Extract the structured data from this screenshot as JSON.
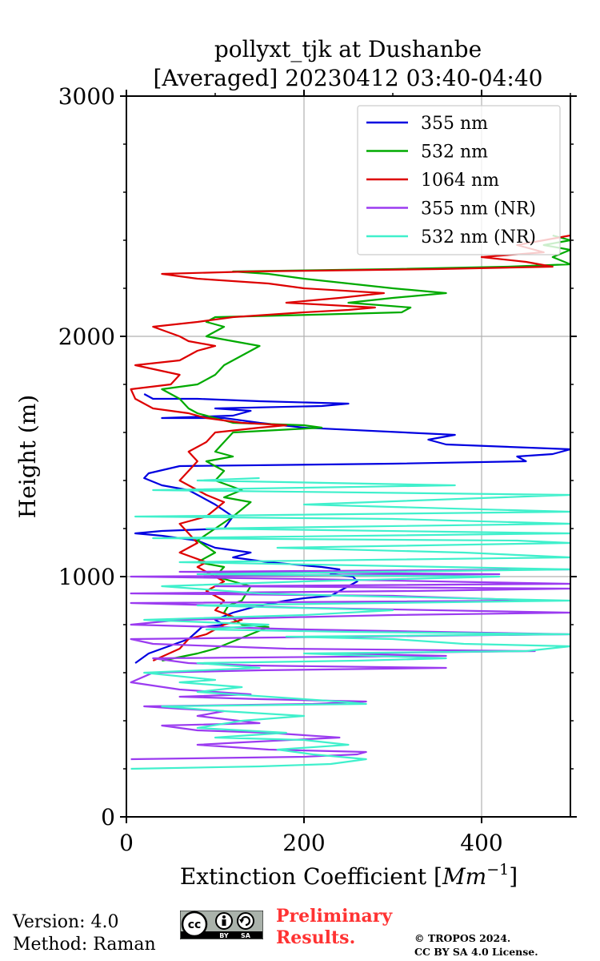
{
  "chart_data": {
    "type": "line",
    "title": "pollyxt_tjk at Dushanbe",
    "subtitle": "[Averaged] 20230412 03:40-04:40",
    "xlabel": "Extinction Coefficient [",
    "xlabel_unit": "Mm",
    "xlabel_exp": "−1",
    "xlabel_end": "]",
    "ylabel": "Height (m)",
    "xlim": [
      0,
      500
    ],
    "ylim": [
      0,
      3000
    ],
    "xticks": [
      0,
      200,
      400
    ],
    "xtick_labels": [
      "0",
      "200",
      "400"
    ],
    "yticks": [
      0,
      1000,
      2000,
      3000
    ],
    "ytick_labels": [
      "0",
      "1000",
      "2000",
      "3000"
    ],
    "y_minor_step": 200,
    "x_minor_step": 100,
    "grid": true,
    "legend_position": "top-right",
    "series": [
      {
        "name": "355 nm",
        "color": "#0000e0",
        "points": [
          [
            10,
            640
          ],
          [
            25,
            680
          ],
          [
            55,
            720
          ],
          [
            70,
            740
          ],
          [
            85,
            790
          ],
          [
            110,
            800
          ],
          [
            100,
            820
          ],
          [
            120,
            850
          ],
          [
            150,
            880
          ],
          [
            180,
            900
          ],
          [
            200,
            910
          ],
          [
            230,
            920
          ],
          [
            260,
            980
          ],
          [
            255,
            1000
          ],
          [
            230,
            1010
          ],
          [
            240,
            1030
          ],
          [
            220,
            1040
          ],
          [
            160,
            1060
          ],
          [
            120,
            1080
          ],
          [
            140,
            1100
          ],
          [
            100,
            1120
          ],
          [
            80,
            1150
          ],
          [
            40,
            1170
          ],
          [
            10,
            1180
          ],
          [
            40,
            1190
          ],
          [
            110,
            1200
          ],
          [
            120,
            1250
          ],
          [
            100,
            1300
          ],
          [
            70,
            1360
          ],
          [
            40,
            1380
          ],
          [
            20,
            1410
          ],
          [
            25,
            1430
          ],
          [
            60,
            1460
          ],
          [
            300,
            1470
          ],
          [
            450,
            1480
          ],
          [
            440,
            1500
          ],
          [
            480,
            1510
          ],
          [
            500,
            1530
          ],
          [
            360,
            1550
          ],
          [
            340,
            1570
          ],
          [
            370,
            1590
          ],
          [
            200,
            1620
          ],
          [
            150,
            1640
          ],
          [
            110,
            1660
          ],
          [
            40,
            1660
          ],
          [
            120,
            1670
          ],
          [
            140,
            1690
          ],
          [
            100,
            1700
          ],
          [
            220,
            1710
          ],
          [
            250,
            1720
          ],
          [
            150,
            1730
          ],
          [
            80,
            1740
          ],
          [
            30,
            1740
          ],
          [
            20,
            1760
          ]
        ]
      },
      {
        "name": "532 nm",
        "color": "#00aa00",
        "points": [
          [
            40,
            650
          ],
          [
            80,
            680
          ],
          [
            100,
            700
          ],
          [
            120,
            730
          ],
          [
            140,
            760
          ],
          [
            160,
            790
          ],
          [
            130,
            800
          ],
          [
            110,
            850
          ],
          [
            115,
            880
          ],
          [
            130,
            900
          ],
          [
            140,
            960
          ],
          [
            120,
            980
          ],
          [
            100,
            1000
          ],
          [
            110,
            1040
          ],
          [
            80,
            1060
          ],
          [
            100,
            1100
          ],
          [
            80,
            1150
          ],
          [
            100,
            1200
          ],
          [
            120,
            1250
          ],
          [
            130,
            1280
          ],
          [
            140,
            1310
          ],
          [
            110,
            1330
          ],
          [
            130,
            1360
          ],
          [
            100,
            1400
          ],
          [
            110,
            1440
          ],
          [
            90,
            1480
          ],
          [
            120,
            1500
          ],
          [
            100,
            1520
          ],
          [
            110,
            1560
          ],
          [
            120,
            1600
          ],
          [
            220,
            1620
          ],
          [
            200,
            1630
          ],
          [
            120,
            1640
          ],
          [
            100,
            1660
          ],
          [
            80,
            1680
          ],
          [
            70,
            1700
          ],
          [
            60,
            1740
          ],
          [
            40,
            1780
          ],
          [
            80,
            1800
          ],
          [
            100,
            1840
          ],
          [
            110,
            1880
          ],
          [
            130,
            1920
          ],
          [
            150,
            1960
          ],
          [
            120,
            1980
          ],
          [
            90,
            2000
          ],
          [
            110,
            2040
          ],
          [
            90,
            2060
          ],
          [
            100,
            2080
          ],
          [
            210,
            2090
          ],
          [
            310,
            2100
          ],
          [
            320,
            2120
          ],
          [
            250,
            2140
          ],
          [
            300,
            2160
          ],
          [
            360,
            2180
          ],
          [
            300,
            2200
          ],
          [
            250,
            2220
          ],
          [
            200,
            2240
          ],
          [
            160,
            2260
          ],
          [
            120,
            2270
          ],
          [
            300,
            2280
          ],
          [
            430,
            2290
          ],
          [
            500,
            2300
          ],
          [
            480,
            2330
          ],
          [
            500,
            2360
          ],
          [
            470,
            2380
          ],
          [
            500,
            2400
          ],
          [
            480,
            2420
          ]
        ]
      },
      {
        "name": "1064 nm",
        "color": "#dd0000",
        "points": [
          [
            30,
            650
          ],
          [
            60,
            700
          ],
          [
            70,
            740
          ],
          [
            90,
            760
          ],
          [
            110,
            800
          ],
          [
            130,
            820
          ],
          [
            100,
            860
          ],
          [
            110,
            900
          ],
          [
            90,
            940
          ],
          [
            110,
            980
          ],
          [
            100,
            1000
          ],
          [
            80,
            1040
          ],
          [
            90,
            1060
          ],
          [
            60,
            1100
          ],
          [
            80,
            1140
          ],
          [
            70,
            1180
          ],
          [
            60,
            1220
          ],
          [
            90,
            1250
          ],
          [
            100,
            1280
          ],
          [
            110,
            1310
          ],
          [
            90,
            1340
          ],
          [
            80,
            1360
          ],
          [
            60,
            1400
          ],
          [
            70,
            1440
          ],
          [
            80,
            1480
          ],
          [
            70,
            1520
          ],
          [
            90,
            1560
          ],
          [
            100,
            1600
          ],
          [
            150,
            1620
          ],
          [
            180,
            1630
          ],
          [
            130,
            1640
          ],
          [
            90,
            1660
          ],
          [
            70,
            1680
          ],
          [
            30,
            1700
          ],
          [
            10,
            1740
          ],
          [
            5,
            1780
          ],
          [
            50,
            1800
          ],
          [
            60,
            1840
          ],
          [
            10,
            1880
          ],
          [
            60,
            1900
          ],
          [
            80,
            1940
          ],
          [
            100,
            1960
          ],
          [
            70,
            1980
          ],
          [
            60,
            2000
          ],
          [
            30,
            2040
          ],
          [
            80,
            2060
          ],
          [
            120,
            2080
          ],
          [
            200,
            2100
          ],
          [
            250,
            2110
          ],
          [
            280,
            2120
          ],
          [
            180,
            2140
          ],
          [
            240,
            2160
          ],
          [
            290,
            2180
          ],
          [
            200,
            2200
          ],
          [
            160,
            2220
          ],
          [
            80,
            2240
          ],
          [
            40,
            2260
          ],
          [
            140,
            2270
          ],
          [
            350,
            2280
          ],
          [
            480,
            2290
          ],
          [
            450,
            2310
          ],
          [
            400,
            2330
          ],
          [
            470,
            2350
          ],
          [
            440,
            2380
          ],
          [
            470,
            2400
          ],
          [
            500,
            2420
          ]
        ]
      },
      {
        "name": "355 nm (NR)",
        "color": "#9b3bf0",
        "points": [
          [
            5,
            240
          ],
          [
            200,
            250
          ],
          [
            260,
            260
          ],
          [
            270,
            270
          ],
          [
            160,
            280
          ],
          [
            80,
            300
          ],
          [
            130,
            310
          ],
          [
            240,
            330
          ],
          [
            160,
            350
          ],
          [
            80,
            360
          ],
          [
            40,
            380
          ],
          [
            150,
            390
          ],
          [
            80,
            420
          ],
          [
            110,
            440
          ],
          [
            60,
            450
          ],
          [
            20,
            460
          ],
          [
            210,
            470
          ],
          [
            270,
            480
          ],
          [
            150,
            490
          ],
          [
            60,
            500
          ],
          [
            140,
            510
          ],
          [
            60,
            530
          ],
          [
            5,
            560
          ],
          [
            30,
            600
          ],
          [
            150,
            610
          ],
          [
            360,
            620
          ],
          [
            140,
            630
          ],
          [
            70,
            640
          ],
          [
            30,
            660
          ],
          [
            360,
            670
          ],
          [
            230,
            680
          ],
          [
            460,
            690
          ],
          [
            180,
            700
          ],
          [
            30,
            720
          ],
          [
            5,
            740
          ],
          [
            250,
            750
          ],
          [
            500,
            760
          ],
          [
            200,
            780
          ],
          [
            5,
            800
          ],
          [
            60,
            820
          ],
          [
            300,
            840
          ],
          [
            500,
            850
          ],
          [
            200,
            870
          ],
          [
            5,
            890
          ],
          [
            470,
            900
          ],
          [
            300,
            920
          ],
          [
            5,
            930
          ],
          [
            320,
            940
          ],
          [
            500,
            950
          ],
          [
            100,
            960
          ],
          [
            500,
            970
          ],
          [
            200,
            990
          ],
          [
            5,
            1000
          ],
          [
            420,
            1010
          ],
          [
            60,
            1020
          ],
          [
            500,
            1030
          ]
        ]
      },
      {
        "name": "532 nm (NR)",
        "color": "#40f0cc",
        "points": [
          [
            5,
            200
          ],
          [
            150,
            210
          ],
          [
            230,
            220
          ],
          [
            270,
            240
          ],
          [
            210,
            260
          ],
          [
            170,
            280
          ],
          [
            250,
            300
          ],
          [
            200,
            320
          ],
          [
            100,
            330
          ],
          [
            180,
            350
          ],
          [
            80,
            370
          ],
          [
            130,
            400
          ],
          [
            200,
            420
          ],
          [
            110,
            440
          ],
          [
            40,
            460
          ],
          [
            270,
            470
          ],
          [
            240,
            480
          ],
          [
            160,
            500
          ],
          [
            80,
            520
          ],
          [
            130,
            540
          ],
          [
            60,
            560
          ],
          [
            100,
            570
          ],
          [
            20,
            600
          ],
          [
            150,
            620
          ],
          [
            80,
            640
          ],
          [
            260,
            650
          ],
          [
            360,
            660
          ],
          [
            200,
            680
          ],
          [
            450,
            690
          ],
          [
            500,
            710
          ],
          [
            380,
            720
          ],
          [
            300,
            740
          ],
          [
            180,
            750
          ],
          [
            500,
            760
          ],
          [
            250,
            770
          ],
          [
            90,
            780
          ],
          [
            160,
            800
          ],
          [
            20,
            820
          ],
          [
            200,
            840
          ],
          [
            300,
            860
          ],
          [
            80,
            880
          ],
          [
            500,
            900
          ],
          [
            250,
            920
          ],
          [
            150,
            930
          ],
          [
            40,
            960
          ],
          [
            200,
            980
          ],
          [
            420,
            1000
          ],
          [
            80,
            1010
          ],
          [
            500,
            1030
          ],
          [
            360,
            1040
          ],
          [
            60,
            1060
          ],
          [
            500,
            1080
          ],
          [
            380,
            1100
          ],
          [
            170,
            1120
          ],
          [
            500,
            1140
          ],
          [
            440,
            1150
          ],
          [
            30,
            1160
          ],
          [
            500,
            1180
          ],
          [
            90,
            1200
          ],
          [
            500,
            1220
          ],
          [
            300,
            1240
          ],
          [
            10,
            1250
          ],
          [
            500,
            1270
          ],
          [
            200,
            1300
          ],
          [
            500,
            1340
          ],
          [
            30,
            1360
          ],
          [
            370,
            1380
          ],
          [
            80,
            1400
          ],
          [
            150,
            1410
          ]
        ]
      }
    ]
  },
  "footer": {
    "version": "Version: 4.0",
    "method": "Method: Raman",
    "prelim_line1": "Preliminary",
    "prelim_line2": "Results.",
    "copyright_line1": "© TROPOS 2024.",
    "copyright_line2": "CC BY SA 4.0 License.",
    "prelim_color": "#ff3333"
  },
  "license_badge": {
    "cc": "cc",
    "by": "BY",
    "sa": "SA"
  }
}
